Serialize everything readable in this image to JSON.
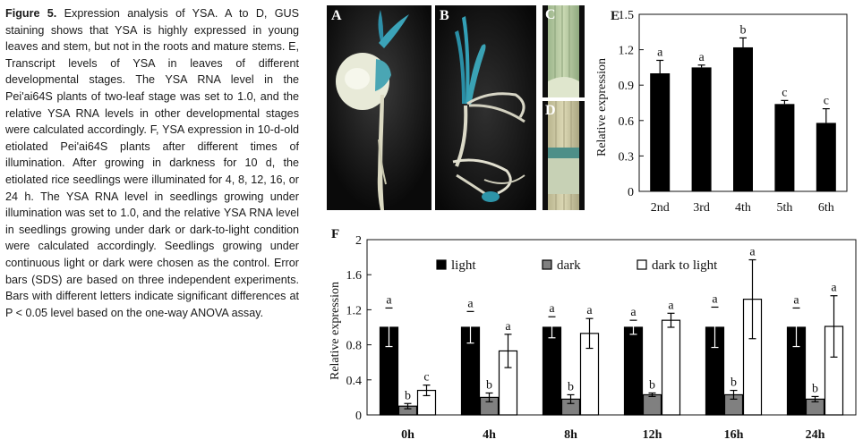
{
  "caption": {
    "fig_label": "Figure 5.",
    "text": "Expression analysis of YSA. A to D, GUS staining shows that YSA is highly expressed in young leaves and stem, but not in the roots and mature stems. E, Transcript levels of YSA in leaves of different developmental stages. The YSA RNA level in the Pei'ai64S plants of two-leaf stage was set to 1.0, and the relative YSA RNA levels in other developmental stages were calculated accordingly. F, YSA expression in 10-d-old etiolated Pei'ai64S plants after different times of illumination. After growing in darkness for 10 d, the etiolated rice seedlings were illuminated for 4, 8, 12, 16, or 24 h. The YSA RNA level in seedlings growing under illumination was set to 1.0, and the relative YSA RNA level in seedlings growing under dark or dark-to-light condition were calculated accordingly. Seedlings growing under continuous light or dark were chosen as the control. Error bars (SDS) are based on three independent experiments. Bars with different letters indicate significant differences at P < 0.05 level based on the one-way ANOVA assay."
  },
  "photos": {
    "a": "A",
    "b": "B",
    "c": "C",
    "d": "D"
  },
  "chart_data": [
    {
      "panel": "E",
      "type": "bar",
      "ylabel": "Relative expression",
      "ylim": [
        0,
        1.5
      ],
      "yticks": [
        "0",
        "0.3",
        "0.6",
        "0.9",
        "1.2",
        "1.5"
      ],
      "categories": [
        "2nd",
        "3rd",
        "4th",
        "5th",
        "6th"
      ],
      "values": [
        1.0,
        1.05,
        1.22,
        0.74,
        0.58
      ],
      "errors": [
        0.11,
        0.02,
        0.08,
        0.03,
        0.12
      ],
      "letters": [
        "a",
        "a",
        "b",
        "c",
        "c"
      ]
    },
    {
      "panel": "F",
      "type": "bar",
      "ylabel": "Relative expression",
      "ylim": [
        0,
        2
      ],
      "yticks": [
        "0",
        "0.4",
        "0.8",
        "1.2",
        "1.6",
        "2"
      ],
      "categories": [
        "0h",
        "4h",
        "8h",
        "12h",
        "16h",
        "24h"
      ],
      "legend_position": "top",
      "series": [
        {
          "name": "light",
          "color": "#000000",
          "values": [
            1.0,
            1.0,
            1.0,
            1.0,
            1.0,
            1.0
          ],
          "errors": [
            0.22,
            0.18,
            0.12,
            0.08,
            0.23,
            0.22
          ],
          "letters": [
            "a",
            "a",
            "a",
            "a",
            "a",
            "a"
          ]
        },
        {
          "name": "dark",
          "color": "#808080",
          "values": [
            0.1,
            0.2,
            0.18,
            0.23,
            0.23,
            0.18
          ],
          "errors": [
            0.03,
            0.05,
            0.05,
            0.02,
            0.05,
            0.03
          ],
          "letters": [
            "b",
            "b",
            "b",
            "b",
            "b",
            "b"
          ]
        },
        {
          "name": "dark to light",
          "color": "#ffffff",
          "values": [
            0.28,
            0.73,
            0.93,
            1.08,
            1.32,
            1.01
          ],
          "errors": [
            0.06,
            0.19,
            0.17,
            0.08,
            0.45,
            0.35
          ],
          "letters": [
            "c",
            "a",
            "a",
            "a",
            "a",
            "a"
          ]
        }
      ]
    }
  ]
}
